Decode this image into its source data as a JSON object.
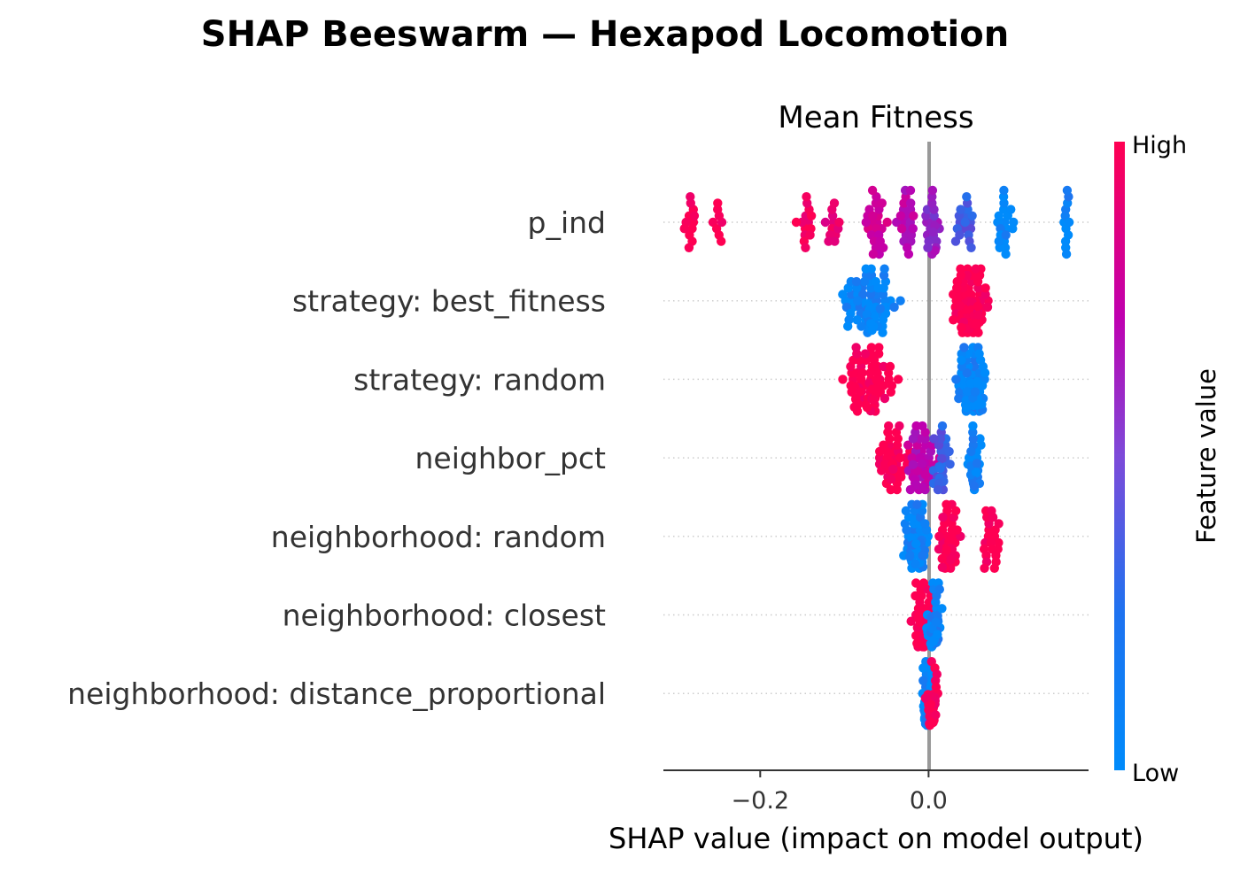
{
  "chart_data": {
    "type": "scatter",
    "subtype": "shap-beeswarm",
    "title": "SHAP Beeswarm — Hexapod Locomotion",
    "subtitle": "Mean Fitness",
    "xlabel": "SHAP value (impact on model output)",
    "xlim": [
      -0.315,
      0.19
    ],
    "xticks": [
      -0.2,
      0.0
    ],
    "xtick_labels": [
      "−0.2",
      "0.0"
    ],
    "features": [
      "p_ind",
      "strategy: best_fitness",
      "strategy: random",
      "neighbor_pct",
      "neighborhood: random",
      "neighborhood: closest",
      "neighborhood: distance_proportional"
    ],
    "colorbar": {
      "label": "Feature value",
      "high_label": "High",
      "low_label": "Low",
      "high_color": "#ff0052",
      "low_color": "#008bfb",
      "mid_color": "#bf00b0"
    },
    "point_groups": [
      {
        "feature": "p_ind",
        "groups": [
          {
            "center": -0.285,
            "spread": 0.012,
            "count": 12,
            "value": 1.0
          },
          {
            "center": -0.25,
            "spread": 0.008,
            "count": 8,
            "value": 1.0
          },
          {
            "center": -0.145,
            "spread": 0.01,
            "count": 14,
            "value": 0.95
          },
          {
            "center": -0.115,
            "spread": 0.012,
            "count": 12,
            "value": 0.85
          },
          {
            "center": -0.065,
            "spread": 0.015,
            "count": 24,
            "value": 0.7
          },
          {
            "center": -0.025,
            "spread": 0.012,
            "count": 22,
            "value": 0.6
          },
          {
            "center": 0.005,
            "spread": 0.012,
            "count": 24,
            "value": 0.45
          },
          {
            "center": 0.04,
            "spread": 0.014,
            "count": 18,
            "value": 0.2
          },
          {
            "center": 0.09,
            "spread": 0.01,
            "count": 20,
            "value": 0.0
          },
          {
            "center": 0.165,
            "spread": 0.004,
            "count": 12,
            "value": 0.0
          }
        ]
      },
      {
        "feature": "strategy: best_fitness",
        "groups": [
          {
            "center": -0.07,
            "spread": 0.032,
            "count": 75,
            "value": 0.0
          },
          {
            "center": 0.05,
            "spread": 0.022,
            "count": 85,
            "value": 1.0
          }
        ]
      },
      {
        "feature": "strategy: random",
        "groups": [
          {
            "center": -0.07,
            "spread": 0.032,
            "count": 70,
            "value": 1.0
          },
          {
            "center": 0.05,
            "spread": 0.018,
            "count": 80,
            "value": 0.0
          }
        ]
      },
      {
        "feature": "neighbor_pct",
        "groups": [
          {
            "center": -0.045,
            "spread": 0.02,
            "count": 40,
            "value": 1.0
          },
          {
            "center": -0.01,
            "spread": 0.02,
            "count": 50,
            "value": 0.6
          },
          {
            "center": 0.015,
            "spread": 0.012,
            "count": 26,
            "value": 0.2
          },
          {
            "center": 0.055,
            "spread": 0.008,
            "count": 30,
            "value": 0.0
          }
        ]
      },
      {
        "feature": "neighborhood: random",
        "groups": [
          {
            "center": -0.015,
            "spread": 0.014,
            "count": 70,
            "value": 0.0
          },
          {
            "center": 0.025,
            "spread": 0.014,
            "count": 40,
            "value": 1.0
          },
          {
            "center": 0.075,
            "spread": 0.01,
            "count": 22,
            "value": 1.0
          }
        ]
      },
      {
        "feature": "neighborhood: closest",
        "groups": [
          {
            "center": -0.007,
            "spread": 0.012,
            "count": 55,
            "value": 1.0
          },
          {
            "center": 0.007,
            "spread": 0.009,
            "count": 55,
            "value": 0.0
          }
        ]
      },
      {
        "feature": "neighborhood: distance_proportional",
        "groups": [
          {
            "center": -0.002,
            "spread": 0.006,
            "count": 60,
            "value": 0.0
          },
          {
            "center": 0.004,
            "spread": 0.008,
            "count": 40,
            "value": 1.0
          }
        ]
      }
    ]
  }
}
